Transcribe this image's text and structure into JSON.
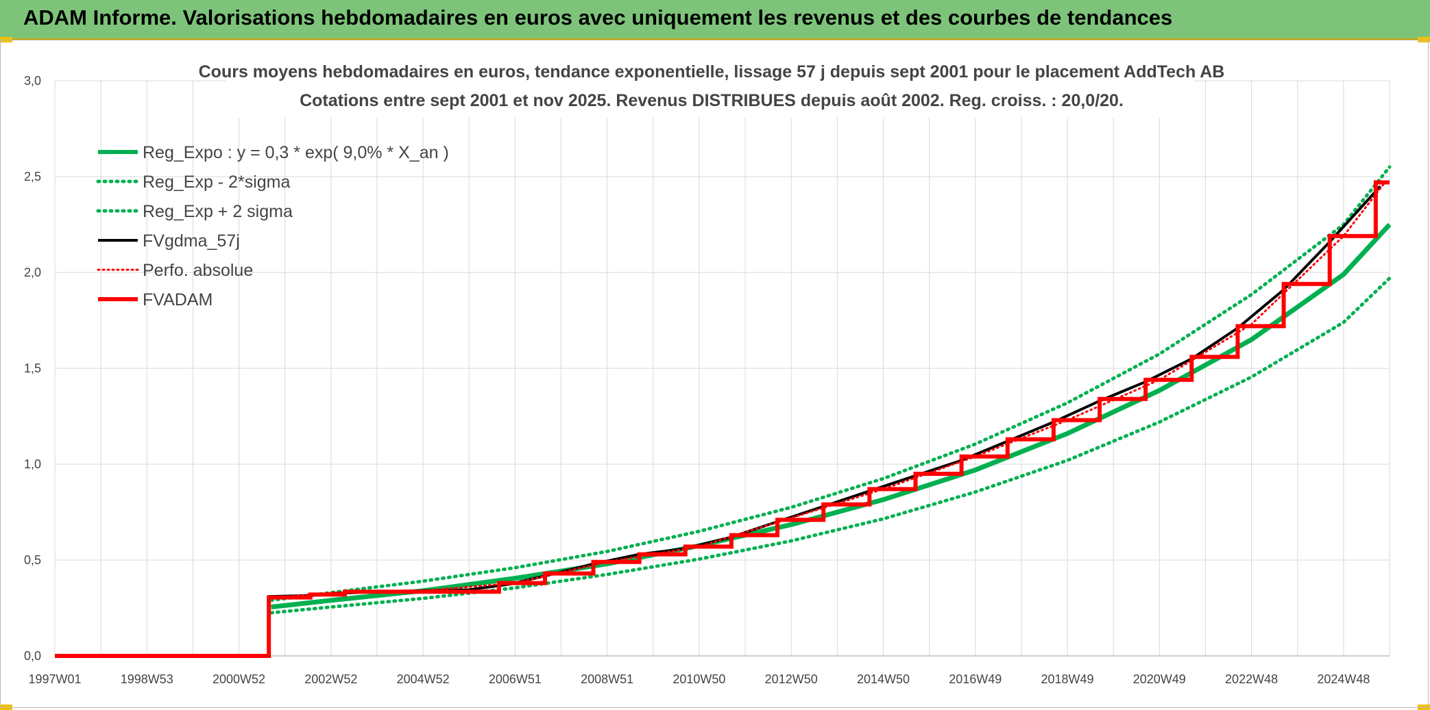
{
  "header": {
    "title": "ADAM Informe. Valorisations hebdomadaires en euros avec uniquement les revenus et des courbes de tendances"
  },
  "chart_data": {
    "type": "line",
    "title": "Cours moyens hebdomadaires en euros, tendance exponentielle, lissage 57 j depuis sept 2001 pour le placement AddTech AB",
    "subtitle": "Cotations entre sept 2001 et nov 2025. Revenus DISTRIBUES depuis août 2002. Reg. croiss. : 20,0/20.",
    "xlabel": "",
    "ylabel": "",
    "xlim": [
      1997.0,
      2026.0
    ],
    "ylim": [
      0,
      3.0
    ],
    "grid": true,
    "legend_position": "top-left",
    "y_ticks": [
      "0,0",
      "0,5",
      "1,0",
      "1,5",
      "2,0",
      "2,5",
      "3,0"
    ],
    "y_tick_values": [
      0,
      0.5,
      1.0,
      1.5,
      2.0,
      2.5,
      3.0
    ],
    "x_ticks": [
      "1997W01",
      "1998W53",
      "2000W52",
      "2002W52",
      "2004W52",
      "2006W51",
      "2008W51",
      "2010W50",
      "2012W50",
      "2014W50",
      "2016W49",
      "2018W49",
      "2020W49",
      "2022W48",
      "2024W48"
    ],
    "x_tick_values": [
      1997.0,
      1999.0,
      2001.0,
      2003.0,
      2005.0,
      2007.0,
      2009.0,
      2011.0,
      2013.0,
      2015.0,
      2017.0,
      2019.0,
      2021.0,
      2023.0,
      2025.0
    ],
    "series": [
      {
        "name": "Reg_Expo : y = 0,3 * exp( 9,0% *  X_an )",
        "color": "#00b050",
        "style": "solid",
        "x": [
          2001.7,
          2003,
          2005,
          2007,
          2009,
          2011,
          2013,
          2015,
          2017,
          2019,
          2021,
          2023,
          2025,
          2026
        ],
        "y": [
          0.255,
          0.29,
          0.34,
          0.405,
          0.48,
          0.575,
          0.685,
          0.815,
          0.97,
          1.16,
          1.385,
          1.65,
          1.99,
          2.25
        ]
      },
      {
        "name": "Reg_Exp - 2*sigma",
        "color": "#00b050",
        "style": "dotted",
        "x": [
          2001.7,
          2003,
          2005,
          2007,
          2009,
          2011,
          2013,
          2015,
          2017,
          2019,
          2021,
          2023,
          2025,
          2026
        ],
        "y": [
          0.225,
          0.255,
          0.3,
          0.355,
          0.425,
          0.505,
          0.6,
          0.715,
          0.855,
          1.02,
          1.22,
          1.455,
          1.74,
          1.97
        ]
      },
      {
        "name": "Reg_Exp + 2 sigma",
        "color": "#00b050",
        "style": "dotted",
        "x": [
          2001.7,
          2003,
          2005,
          2007,
          2009,
          2011,
          2013,
          2015,
          2017,
          2019,
          2021,
          2023,
          2025,
          2026
        ],
        "y": [
          0.29,
          0.33,
          0.39,
          0.46,
          0.545,
          0.65,
          0.775,
          0.925,
          1.105,
          1.32,
          1.575,
          1.885,
          2.25,
          2.55
        ]
      },
      {
        "name": "FVgdma_57j",
        "color": "#000000",
        "style": "solid",
        "x": [
          1997.0,
          2001.65,
          2001.66,
          2002.6,
          2003.0,
          2004.0,
          2005.0,
          2006.0,
          2006.9,
          2007.7,
          2008.7,
          2009.7,
          2010.7,
          2011.7,
          2012.7,
          2013.7,
          2014.7,
          2015.7,
          2016.7,
          2017.7,
          2018.7,
          2019.7,
          2020.7,
          2021.7,
          2022.7,
          2023.7,
          2024.7,
          2025.8
        ],
        "y": [
          0,
          0,
          0.31,
          0.315,
          0.325,
          0.335,
          0.34,
          0.345,
          0.375,
          0.42,
          0.48,
          0.53,
          0.56,
          0.62,
          0.7,
          0.78,
          0.86,
          0.94,
          1.02,
          1.12,
          1.22,
          1.33,
          1.43,
          1.55,
          1.71,
          1.91,
          2.16,
          2.45
        ]
      },
      {
        "name": "Perfo. absolue",
        "color": "#ff0000",
        "style": "dotted",
        "x": [
          2001.65,
          2003,
          2005,
          2007,
          2009,
          2011,
          2013,
          2015,
          2017,
          2019,
          2021,
          2023,
          2025,
          2025.9
        ],
        "y": [
          0.3,
          0.33,
          0.34,
          0.38,
          0.49,
          0.57,
          0.72,
          0.87,
          1.04,
          1.23,
          1.44,
          1.73,
          2.19,
          2.47
        ]
      },
      {
        "name": "FVADAM",
        "color": "#ff0000",
        "style": "solid",
        "steps_x": [
          1997.0,
          2001.65,
          2002.55,
          2003.3,
          2006.65,
          2007.65,
          2008.7,
          2009.7,
          2010.7,
          2011.7,
          2012.7,
          2013.7,
          2014.7,
          2015.7,
          2016.7,
          2017.7,
          2018.7,
          2019.7,
          2020.7,
          2021.7,
          2022.7,
          2023.7,
          2024.7,
          2025.7,
          2026.0
        ],
        "steps_y": [
          0,
          0.305,
          0.32,
          0.335,
          0.38,
          0.43,
          0.49,
          0.53,
          0.57,
          0.63,
          0.71,
          0.79,
          0.87,
          0.95,
          1.04,
          1.13,
          1.23,
          1.34,
          1.44,
          1.56,
          1.72,
          1.94,
          2.19,
          2.47,
          2.47
        ]
      }
    ]
  }
}
